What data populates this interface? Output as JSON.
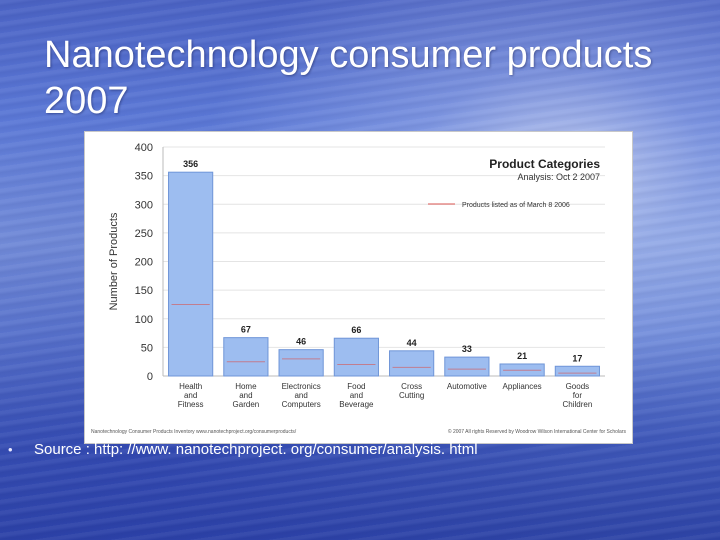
{
  "slide": {
    "title": "Nanotechnology consumer products 2007",
    "source_text": "Source : http: //www. nanotechproject. org/consumer/analysis. html"
  },
  "chart_data": {
    "type": "bar",
    "title": "Product Categories",
    "subtitle": "Analysis: Oct 2 2007",
    "ylabel": "Number of Products",
    "xlabel": "",
    "ylim": [
      0,
      400
    ],
    "yticks": [
      0,
      50,
      100,
      150,
      200,
      250,
      300,
      350,
      400
    ],
    "grid": true,
    "legend_placement": "top-right",
    "categories": [
      [
        "Health",
        "and",
        "Fitness"
      ],
      [
        "Home",
        "and",
        "Garden"
      ],
      [
        "Electronics",
        "and",
        "Computers"
      ],
      [
        "Food",
        "and",
        "Beverage"
      ],
      [
        "Cross",
        "Cutting"
      ],
      [
        "Automotive"
      ],
      [
        "Appliances"
      ],
      [
        "Goods",
        "for",
        "Children"
      ]
    ],
    "values": [
      356,
      67,
      46,
      66,
      44,
      33,
      21,
      17
    ],
    "reference_series": {
      "name": "Products listed as of March 8 2006",
      "values": [
        125,
        25,
        30,
        20,
        15,
        12,
        10,
        5
      ]
    },
    "footer_left": "Nanotechnology Consumer Products Inventory   www.nanotechproject.org/consumerproducts/",
    "footer_right": "© 2007 All rights Reserved by Woodrow Wilson International Center for Scholars",
    "colors": {
      "bar_fill": "#9dbdf0",
      "bar_stroke": "#6f95d8",
      "reference_line": "#d9534f",
      "grid": "#e4e4e4"
    }
  }
}
